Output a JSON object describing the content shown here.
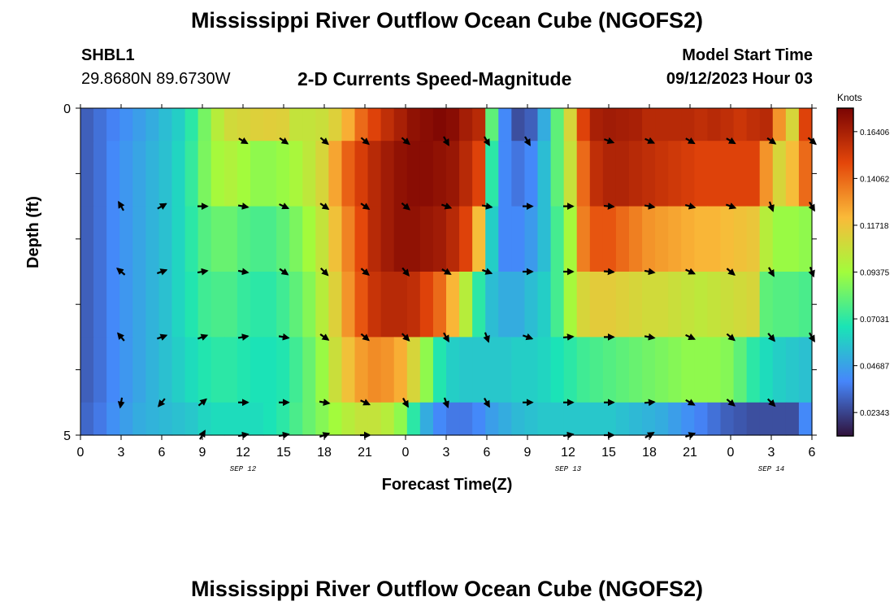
{
  "header": {
    "title": "Mississippi River Outflow Ocean Cube (NGOFS2)",
    "station": "SHBL1",
    "coords": "29.8680N  89.6730W",
    "subtitle": "2-D Currents Speed-Magnitude",
    "model_start_label": "Model Start Time",
    "model_start_value": "09/12/2023 Hour 03",
    "repeat_title": "Mississippi River Outflow Ocean Cube (NGOFS2)"
  },
  "colorbar": {
    "units": "Knots",
    "ticks": [
      "0.16406",
      "0.14062",
      "0.11718",
      "0.09375",
      "0.07031",
      "0.04687",
      "0.02343"
    ],
    "tick_values": [
      0.16406,
      0.14062,
      0.11718,
      0.09375,
      0.07031,
      0.04687,
      0.02343
    ],
    "range": [
      0.0117,
      0.1758
    ]
  },
  "chart_data": {
    "type": "heatmap",
    "xlabel": "Forecast Time(Z)",
    "ylabel": "Depth (ft)",
    "x_tick_labels": [
      "0",
      "3",
      "6",
      "9",
      "12",
      "15",
      "18",
      "21",
      "0",
      "3",
      "6",
      "9",
      "12",
      "15",
      "18",
      "21",
      "0",
      "3",
      "6"
    ],
    "y_tick_labels": [
      "0",
      "5"
    ],
    "ylim": [
      0,
      5
    ],
    "xlim_hours": [
      0,
      54
    ],
    "date_labels": [
      {
        "text": "SEP 12",
        "hour": 12
      },
      {
        "text": "SEP 13",
        "hour": 36
      },
      {
        "text": "SEP 14",
        "hour": 51
      }
    ],
    "colormap_stops": [
      "#30123b",
      "#4686fb",
      "#1ae4b6",
      "#a2fc3c",
      "#faba39",
      "#e4460a",
      "#7a0403"
    ],
    "depth_layers": [
      "0-0.5",
      "0.5-1.5",
      "1.5-2.5",
      "2.5-3.5",
      "3.5-4.5",
      "4.5-5"
    ],
    "speed_knots": [
      [
        0.03,
        0.034,
        0.038,
        0.042,
        0.046,
        0.05,
        0.055,
        0.06,
        0.07,
        0.085,
        0.1,
        0.108,
        0.11,
        0.112,
        0.113,
        0.112,
        0.104,
        0.104,
        0.106,
        0.112,
        0.124,
        0.14,
        0.15,
        0.158,
        0.164,
        0.17,
        0.172,
        0.174,
        0.172,
        0.165,
        0.16,
        0.08,
        0.04,
        0.026,
        0.03,
        0.05,
        0.08,
        0.11,
        0.15,
        0.164,
        0.166,
        0.165,
        0.164,
        0.16,
        0.16,
        0.16,
        0.16,
        0.158,
        0.16,
        0.158,
        0.155,
        0.158,
        0.16,
        0.13,
        0.11,
        0.15
      ],
      [
        0.03,
        0.034,
        0.04,
        0.044,
        0.048,
        0.052,
        0.056,
        0.062,
        0.072,
        0.086,
        0.095,
        0.098,
        0.094,
        0.09,
        0.09,
        0.092,
        0.096,
        0.102,
        0.11,
        0.126,
        0.142,
        0.152,
        0.16,
        0.166,
        0.17,
        0.172,
        0.172,
        0.17,
        0.168,
        0.16,
        0.15,
        0.07,
        0.04,
        0.035,
        0.04,
        0.055,
        0.08,
        0.105,
        0.14,
        0.158,
        0.162,
        0.162,
        0.16,
        0.158,
        0.156,
        0.154,
        0.152,
        0.15,
        0.15,
        0.15,
        0.15,
        0.15,
        0.13,
        0.11,
        0.12,
        0.14
      ],
      [
        0.03,
        0.034,
        0.04,
        0.044,
        0.048,
        0.052,
        0.056,
        0.062,
        0.07,
        0.078,
        0.082,
        0.082,
        0.078,
        0.076,
        0.076,
        0.08,
        0.086,
        0.094,
        0.104,
        0.118,
        0.134,
        0.148,
        0.16,
        0.166,
        0.17,
        0.17,
        0.168,
        0.166,
        0.16,
        0.15,
        0.12,
        0.06,
        0.04,
        0.04,
        0.045,
        0.055,
        0.075,
        0.095,
        0.135,
        0.145,
        0.145,
        0.14,
        0.135,
        0.13,
        0.128,
        0.126,
        0.124,
        0.122,
        0.122,
        0.12,
        0.118,
        0.116,
        0.1,
        0.092,
        0.092,
        0.09
      ],
      [
        0.03,
        0.034,
        0.04,
        0.044,
        0.048,
        0.052,
        0.056,
        0.062,
        0.068,
        0.074,
        0.076,
        0.076,
        0.072,
        0.07,
        0.07,
        0.074,
        0.08,
        0.088,
        0.1,
        0.112,
        0.13,
        0.145,
        0.156,
        0.16,
        0.16,
        0.158,
        0.15,
        0.14,
        0.122,
        0.1,
        0.07,
        0.055,
        0.05,
        0.05,
        0.055,
        0.06,
        0.075,
        0.095,
        0.11,
        0.114,
        0.114,
        0.112,
        0.11,
        0.108,
        0.108,
        0.106,
        0.104,
        0.102,
        0.104,
        0.106,
        0.108,
        0.11,
        0.08,
        0.078,
        0.078,
        0.076
      ],
      [
        0.03,
        0.034,
        0.04,
        0.044,
        0.048,
        0.052,
        0.056,
        0.06,
        0.064,
        0.068,
        0.07,
        0.07,
        0.068,
        0.066,
        0.066,
        0.068,
        0.074,
        0.082,
        0.092,
        0.106,
        0.118,
        0.128,
        0.132,
        0.13,
        0.124,
        0.11,
        0.09,
        0.068,
        0.06,
        0.058,
        0.058,
        0.058,
        0.058,
        0.06,
        0.06,
        0.062,
        0.066,
        0.07,
        0.074,
        0.076,
        0.078,
        0.08,
        0.082,
        0.084,
        0.086,
        0.088,
        0.09,
        0.09,
        0.09,
        0.088,
        0.08,
        0.07,
        0.064,
        0.06,
        0.058,
        0.056
      ],
      [
        0.032,
        0.036,
        0.042,
        0.046,
        0.05,
        0.052,
        0.054,
        0.056,
        0.058,
        0.062,
        0.064,
        0.064,
        0.064,
        0.064,
        0.066,
        0.07,
        0.076,
        0.082,
        0.088,
        0.094,
        0.1,
        0.104,
        0.104,
        0.1,
        0.09,
        0.07,
        0.05,
        0.04,
        0.036,
        0.036,
        0.04,
        0.046,
        0.05,
        0.054,
        0.056,
        0.058,
        0.058,
        0.058,
        0.058,
        0.058,
        0.058,
        0.056,
        0.054,
        0.052,
        0.05,
        0.046,
        0.042,
        0.038,
        0.034,
        0.03,
        0.028,
        0.026,
        0.026,
        0.026,
        0.026,
        0.04
      ]
    ],
    "vector_depths": [
      0.5,
      1.5,
      2.5,
      3.5,
      4.5,
      5.0
    ],
    "vector_hours": [
      3,
      6,
      9,
      12,
      15,
      18,
      21,
      24,
      27,
      30,
      33,
      36,
      39,
      42,
      45,
      48,
      51,
      54
    ],
    "vector_angles_deg": [
      [
        null,
        null,
        null,
        30,
        35,
        40,
        40,
        40,
        60,
        60,
        60,
        null,
        20,
        25,
        30,
        30,
        35,
        40
      ],
      [
        -120,
        -30,
        0,
        10,
        25,
        35,
        35,
        40,
        20,
        10,
        0,
        0,
        5,
        10,
        15,
        20,
        70,
        60
      ],
      [
        -140,
        -20,
        -10,
        10,
        35,
        45,
        40,
        50,
        30,
        20,
        0,
        0,
        5,
        10,
        25,
        40,
        60,
        70
      ],
      [
        -130,
        -20,
        -20,
        -10,
        10,
        35,
        40,
        45,
        60,
        70,
        20,
        -5,
        0,
        10,
        25,
        40,
        50,
        60
      ],
      [
        100,
        130,
        -40,
        0,
        0,
        10,
        25,
        60,
        70,
        60,
        0,
        0,
        0,
        -5,
        30,
        40,
        45,
        null
      ],
      [
        null,
        null,
        -60,
        -10,
        -10,
        -20,
        0,
        null,
        null,
        null,
        null,
        -10,
        0,
        -30,
        -20,
        null,
        null,
        null
      ]
    ]
  }
}
